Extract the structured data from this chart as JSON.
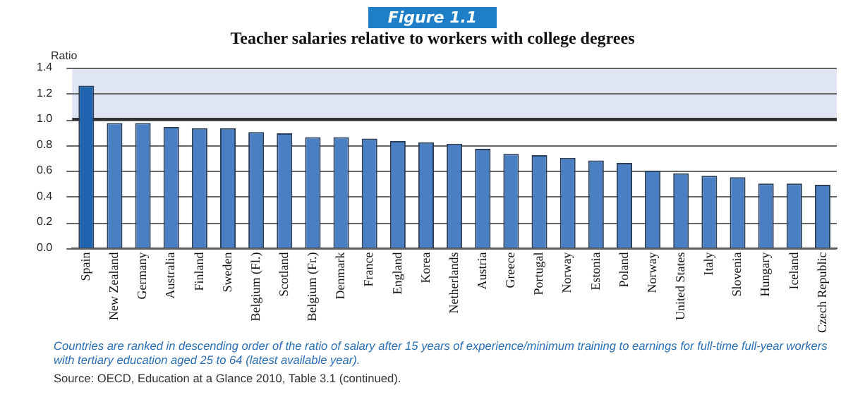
{
  "chart_data": {
    "type": "bar",
    "title": "Teacher salaries relative to workers with college degrees",
    "ylabel": "Ratio",
    "categories": [
      "Spain",
      "New Zealand",
      "Germany",
      "Australia",
      "Finland",
      "Sweden",
      "Belgium (Fl.)",
      "Scotland",
      "Belgium (Fr.)",
      "Denmark",
      "France",
      "England",
      "Korea",
      "Netherlands",
      "Austria",
      "Greece",
      "Portugal",
      "Norway",
      "Estonia",
      "Poland",
      "Norway",
      "United States",
      "Italy",
      "Slovenia",
      "Hungary",
      "Iceland",
      "Czech Republic"
    ],
    "values": [
      1.26,
      0.97,
      0.97,
      0.94,
      0.93,
      0.93,
      0.9,
      0.89,
      0.86,
      0.86,
      0.85,
      0.83,
      0.82,
      0.81,
      0.77,
      0.73,
      0.72,
      0.7,
      0.68,
      0.66,
      0.6,
      0.58,
      0.56,
      0.55,
      0.5,
      0.5,
      0.49
    ],
    "colors": [
      "#1e64ae",
      "#4a80c3",
      "#4a80c3",
      "#4a80c3",
      "#4a80c3",
      "#4a80c3",
      "#4a80c3",
      "#4a80c3",
      "#4a80c3",
      "#4a80c3",
      "#4a80c3",
      "#4a80c3",
      "#4a80c3",
      "#4a80c3",
      "#4a80c3",
      "#4a80c3",
      "#4a80c3",
      "#4a80c3",
      "#4a80c3",
      "#4a80c3",
      "#4a80c3",
      "#4a80c3",
      "#4a80c3",
      "#4a80c3",
      "#4a80c3",
      "#4a80c3",
      "#4a80c3"
    ],
    "ylim": [
      0,
      1.4
    ],
    "yticks": [
      {
        "value": 0,
        "label": "0.0"
      },
      {
        "value": 0.2,
        "label": "0.2"
      },
      {
        "value": 0.4,
        "label": "0.4"
      },
      {
        "value": 0.6,
        "label": "0.6"
      },
      {
        "value": 0.8,
        "label": "0.8"
      },
      {
        "value": 1,
        "label": "1.0"
      },
      {
        "value": 1.2,
        "label": "1.2"
      },
      {
        "value": 1.4,
        "label": "1.4"
      }
    ],
    "grid": "y",
    "legend": false,
    "bands": [
      {
        "axis": "y",
        "from": 1,
        "to": 1.4,
        "color": "#dfe5f3"
      }
    ],
    "ref_lines": [
      {
        "axis": "y",
        "value": 1,
        "color": "#333333"
      }
    ],
    "annotations": [
      "Figure 1.1",
      "Countries are ranked in descending order of the ratio of salary after 15 years of experience/minimum training to earnings for full-time full-year workers with tertiary education aged 25 to 64 (latest available year).",
      "Source: OECD, Education at a Glance 2010, Table 3.1 (continued)."
    ]
  }
}
